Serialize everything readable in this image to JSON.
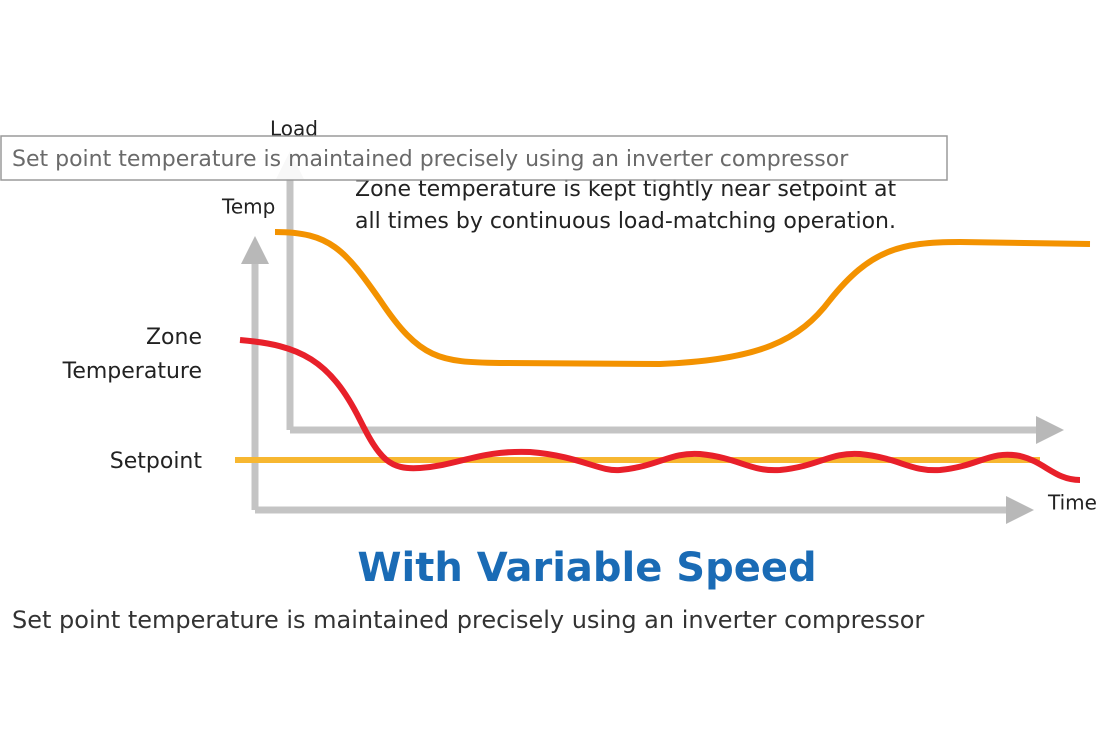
{
  "diagram": {
    "tooltip": "Set point temperature is maintained precisely using an inverter compressor",
    "load_label": "Load",
    "note_lines": [
      "Zone temperature is kept tightly near setpoint at",
      "all times by continuous load-matching operation."
    ],
    "temp_label": "Temp",
    "zone_label_lines": [
      "Zone",
      "Temperature"
    ],
    "setpoint_label": "Setpoint",
    "time_label": "Time",
    "title": "With Variable Speed",
    "caption": "Set point temperature is maintained precisely using an inverter compressor"
  }
}
